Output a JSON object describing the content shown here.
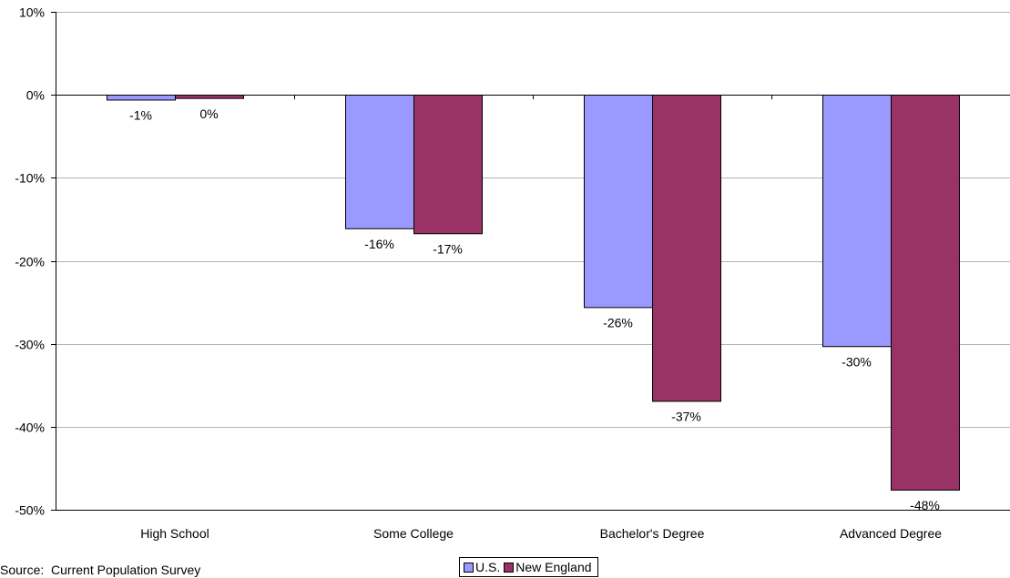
{
  "chart_data": {
    "type": "bar",
    "categories": [
      "High School",
      "Some College",
      "Bachelor's Degree",
      "Advanced Degree"
    ],
    "series": [
      {
        "name": "U.S.",
        "values": [
          -0.6,
          -16.1,
          -25.6,
          -30.3
        ],
        "labels": [
          "-1%",
          "-16%",
          "-26%",
          "-30%"
        ],
        "color": "#9999ff"
      },
      {
        "name": "New England",
        "values": [
          -0.4,
          -16.7,
          -36.9,
          -47.6
        ],
        "labels": [
          "0%",
          "-17%",
          "-37%",
          "-48%"
        ],
        "color": "#993366"
      }
    ],
    "ylim": [
      -50,
      10
    ],
    "yticks": [
      10,
      0,
      -10,
      -20,
      -30,
      -40,
      -50
    ],
    "ytick_labels": [
      "10%",
      "0%",
      "-10%",
      "-20%",
      "-30%",
      "-40%",
      "-50%"
    ],
    "grid": true,
    "legend_position": "bottom-center",
    "xlabel": "",
    "ylabel": ""
  },
  "source_text": "Source:  Current Population Survey"
}
